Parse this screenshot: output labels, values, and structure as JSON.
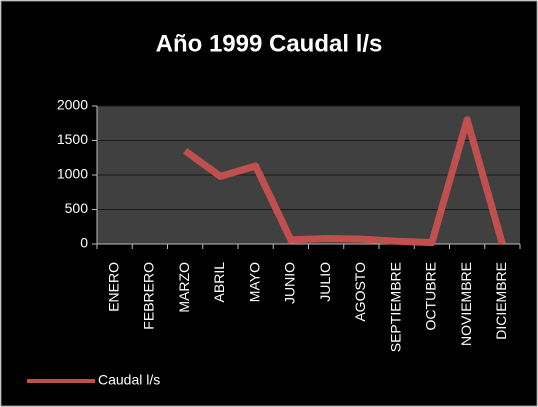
{
  "chart_data": {
    "type": "line",
    "title": "Año 1999 Caudal l/s",
    "categories": [
      "ENERO",
      "FEBRERO",
      "MARZO",
      "ABRIL",
      "MAYO",
      "JUNIO",
      "JULIO",
      "AGOSTO",
      "SEPTIEMBRE",
      "OCTUBRE",
      "NOVIEMBRE",
      "DICIEMBRE"
    ],
    "series": [
      {
        "name": "Caudal l/s",
        "color": "#c0504d",
        "values": [
          null,
          null,
          1350,
          980,
          1130,
          60,
          80,
          70,
          40,
          20,
          1800,
          0
        ]
      }
    ],
    "ylim": [
      0,
      2000
    ],
    "yticks": [
      0,
      500,
      1000,
      1500,
      2000
    ],
    "grid": true,
    "legend": "bottom-left"
  }
}
